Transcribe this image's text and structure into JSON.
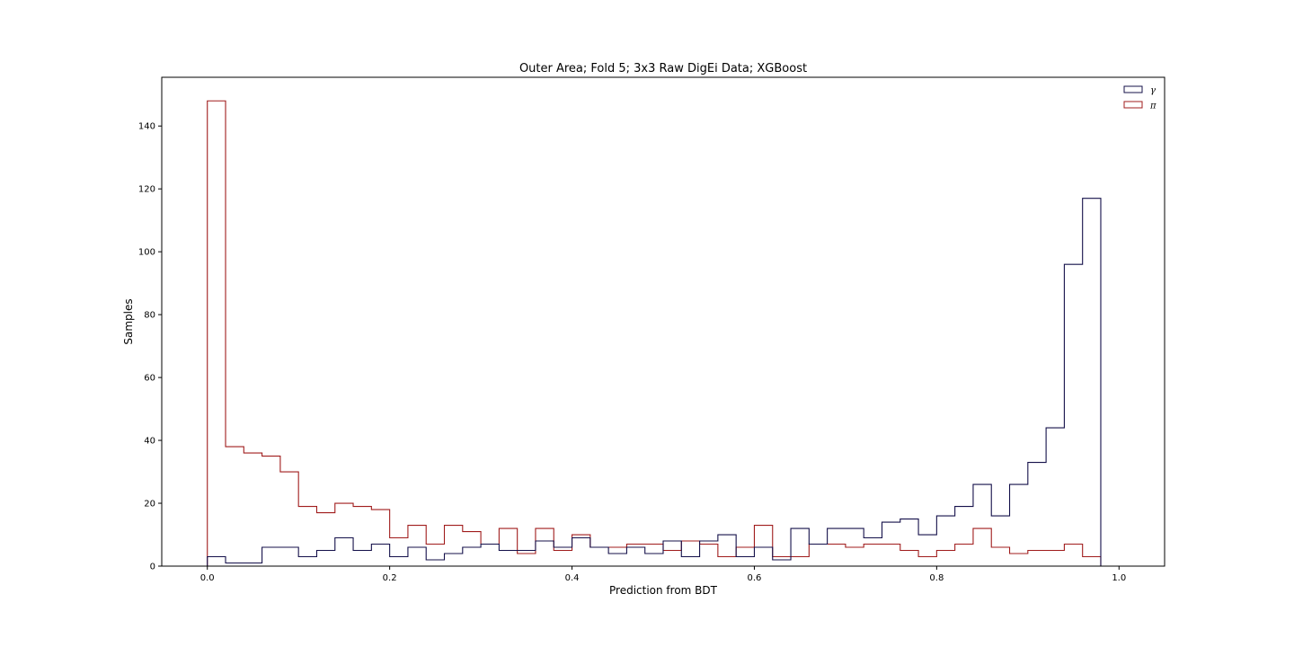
{
  "chart_data": {
    "type": "histogram-step",
    "title": "Outer Area; Fold 5; 3x3 Raw DigEi Data; XGBoost",
    "xlabel": "Prediction from BDT",
    "ylabel": "Samples",
    "xlim": [
      -0.05,
      1.05
    ],
    "ylim": [
      0,
      155.5
    ],
    "xticks": [
      0.0,
      0.2,
      0.4,
      0.6,
      0.8,
      1.0
    ],
    "xtick_labels": [
      "0.0",
      "0.2",
      "0.4",
      "0.6",
      "0.8",
      "1.0"
    ],
    "yticks": [
      0,
      20,
      40,
      60,
      80,
      100,
      120,
      140
    ],
    "ytick_labels": [
      "0",
      "20",
      "40",
      "60",
      "80",
      "100",
      "120",
      "140"
    ],
    "bin_edges": [
      0.0,
      0.02,
      0.04,
      0.06,
      0.08,
      0.1,
      0.12,
      0.14,
      0.16,
      0.18,
      0.2,
      0.22,
      0.24,
      0.26,
      0.28,
      0.3,
      0.32,
      0.34,
      0.36,
      0.38,
      0.4,
      0.42,
      0.44,
      0.46,
      0.48,
      0.5,
      0.52,
      0.54,
      0.56,
      0.58,
      0.6,
      0.62,
      0.64,
      0.66,
      0.68,
      0.7,
      0.72,
      0.74,
      0.76,
      0.78,
      0.8,
      0.82,
      0.84,
      0.86,
      0.88,
      0.9,
      0.92,
      0.94,
      0.96,
      0.98,
      1.0
    ],
    "series": [
      {
        "name": "γ",
        "color": "#14104a",
        "values": [
          3,
          1,
          1,
          6,
          6,
          3,
          5,
          9,
          5,
          7,
          3,
          6,
          2,
          4,
          6,
          7,
          5,
          5,
          8,
          6,
          9,
          6,
          4,
          6,
          4,
          8,
          3,
          8,
          10,
          3,
          6,
          2,
          12,
          7,
          12,
          12,
          9,
          14,
          15,
          10,
          16,
          19,
          26,
          16,
          26,
          33,
          44,
          96,
          117,
          0
        ]
      },
      {
        "name": "π",
        "color": "#a01c1c",
        "values": [
          148,
          38,
          36,
          35,
          30,
          19,
          17,
          20,
          19,
          18,
          9,
          13,
          7,
          13,
          11,
          7,
          12,
          4,
          12,
          5,
          10,
          6,
          6,
          7,
          7,
          5,
          8,
          7,
          3,
          6,
          13,
          3,
          3,
          7,
          7,
          6,
          7,
          7,
          5,
          3,
          5,
          7,
          12,
          6,
          4,
          5,
          5,
          7,
          3,
          0
        ]
      }
    ],
    "legend_position": "top-right"
  }
}
